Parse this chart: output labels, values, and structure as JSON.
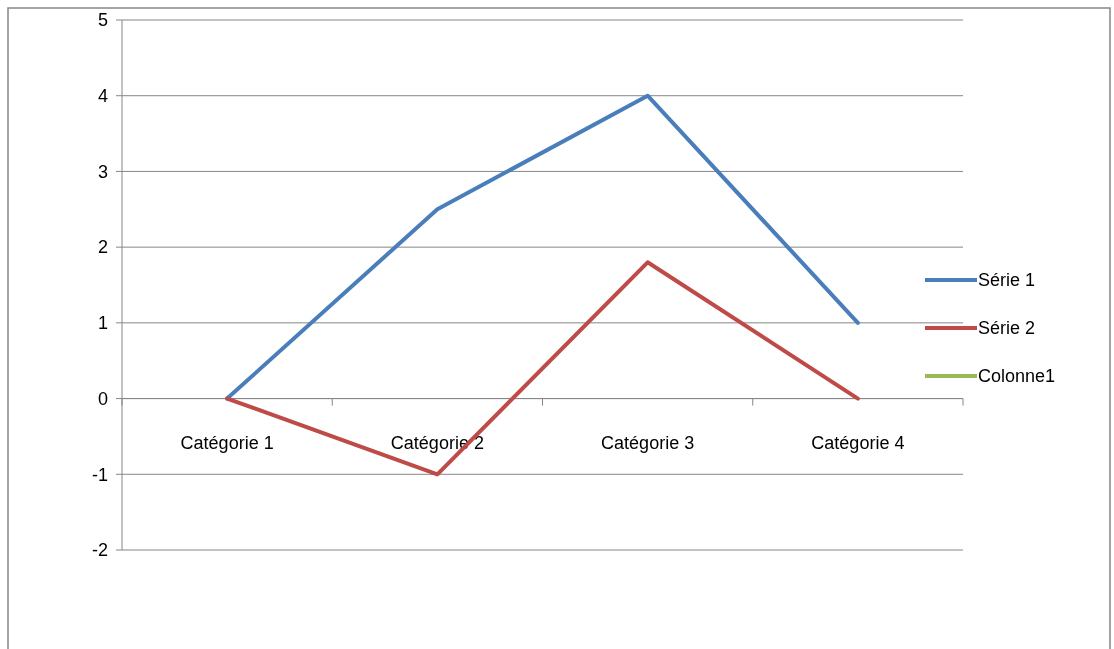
{
  "chart_data": {
    "type": "line",
    "categories": [
      "Catégorie 1",
      "Catégorie 2",
      "Catégorie 3",
      "Catégorie 4"
    ],
    "series": [
      {
        "name": "Série 1",
        "color": "#4a7ebb",
        "values": [
          0,
          2.5,
          4,
          1
        ]
      },
      {
        "name": "Série 2",
        "color": "#be4b48",
        "values": [
          0,
          -1,
          1.8,
          0
        ]
      },
      {
        "name": "Colonne1",
        "color": "#98b954",
        "values": [
          null,
          null,
          null,
          null
        ]
      }
    ],
    "ylim": [
      -2,
      5
    ],
    "yticks": [
      -2,
      -1,
      0,
      1,
      2,
      3,
      4,
      5
    ],
    "grid": "y",
    "legend": "right",
    "marker": "none",
    "line_style": "solid"
  }
}
